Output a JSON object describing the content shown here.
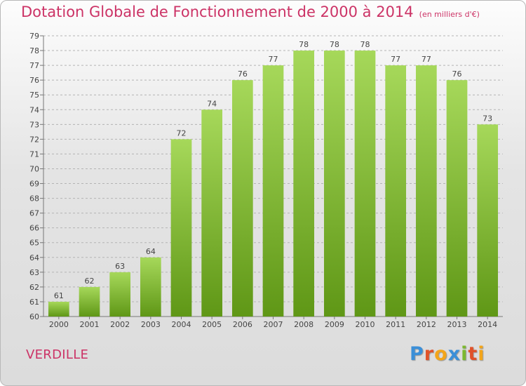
{
  "title": "Dotation Globale de Fonctionnement de 2000 à 2014",
  "unit_label": "(en milliers d'€)",
  "commune": "VERDILLE",
  "logo": {
    "letters": [
      "P",
      "r",
      "o",
      "x",
      "i",
      "t",
      "i"
    ],
    "colors": [
      "#3b8fd8",
      "#e0522a",
      "#f3a51a",
      "#3b8fd8",
      "#7cb82f",
      "#e0522a",
      "#f3a51a"
    ]
  },
  "colors": {
    "title": "#cc3366",
    "bar_light": "#a6d85a",
    "bar_dark": "#5f9716",
    "label": "#444444",
    "grid": "#b4b4b4"
  },
  "chart_data": {
    "type": "bar",
    "title": "Dotation Globale de Fonctionnement de 2000 à 2014",
    "xlabel": "",
    "ylabel": "",
    "ylim": [
      60,
      79
    ],
    "yticks": [
      60,
      61,
      62,
      63,
      64,
      65,
      66,
      67,
      68,
      69,
      70,
      71,
      72,
      73,
      74,
      75,
      76,
      77,
      78,
      79
    ],
    "grid": "horizontal dashed",
    "categories": [
      "2000",
      "2001",
      "2002",
      "2003",
      "2004",
      "2005",
      "2006",
      "2007",
      "2008",
      "2009",
      "2010",
      "2011",
      "2012",
      "2013",
      "2014"
    ],
    "values": [
      61,
      62,
      63,
      64,
      72,
      74,
      76,
      77,
      78,
      78,
      78,
      77,
      77,
      76,
      73
    ]
  }
}
